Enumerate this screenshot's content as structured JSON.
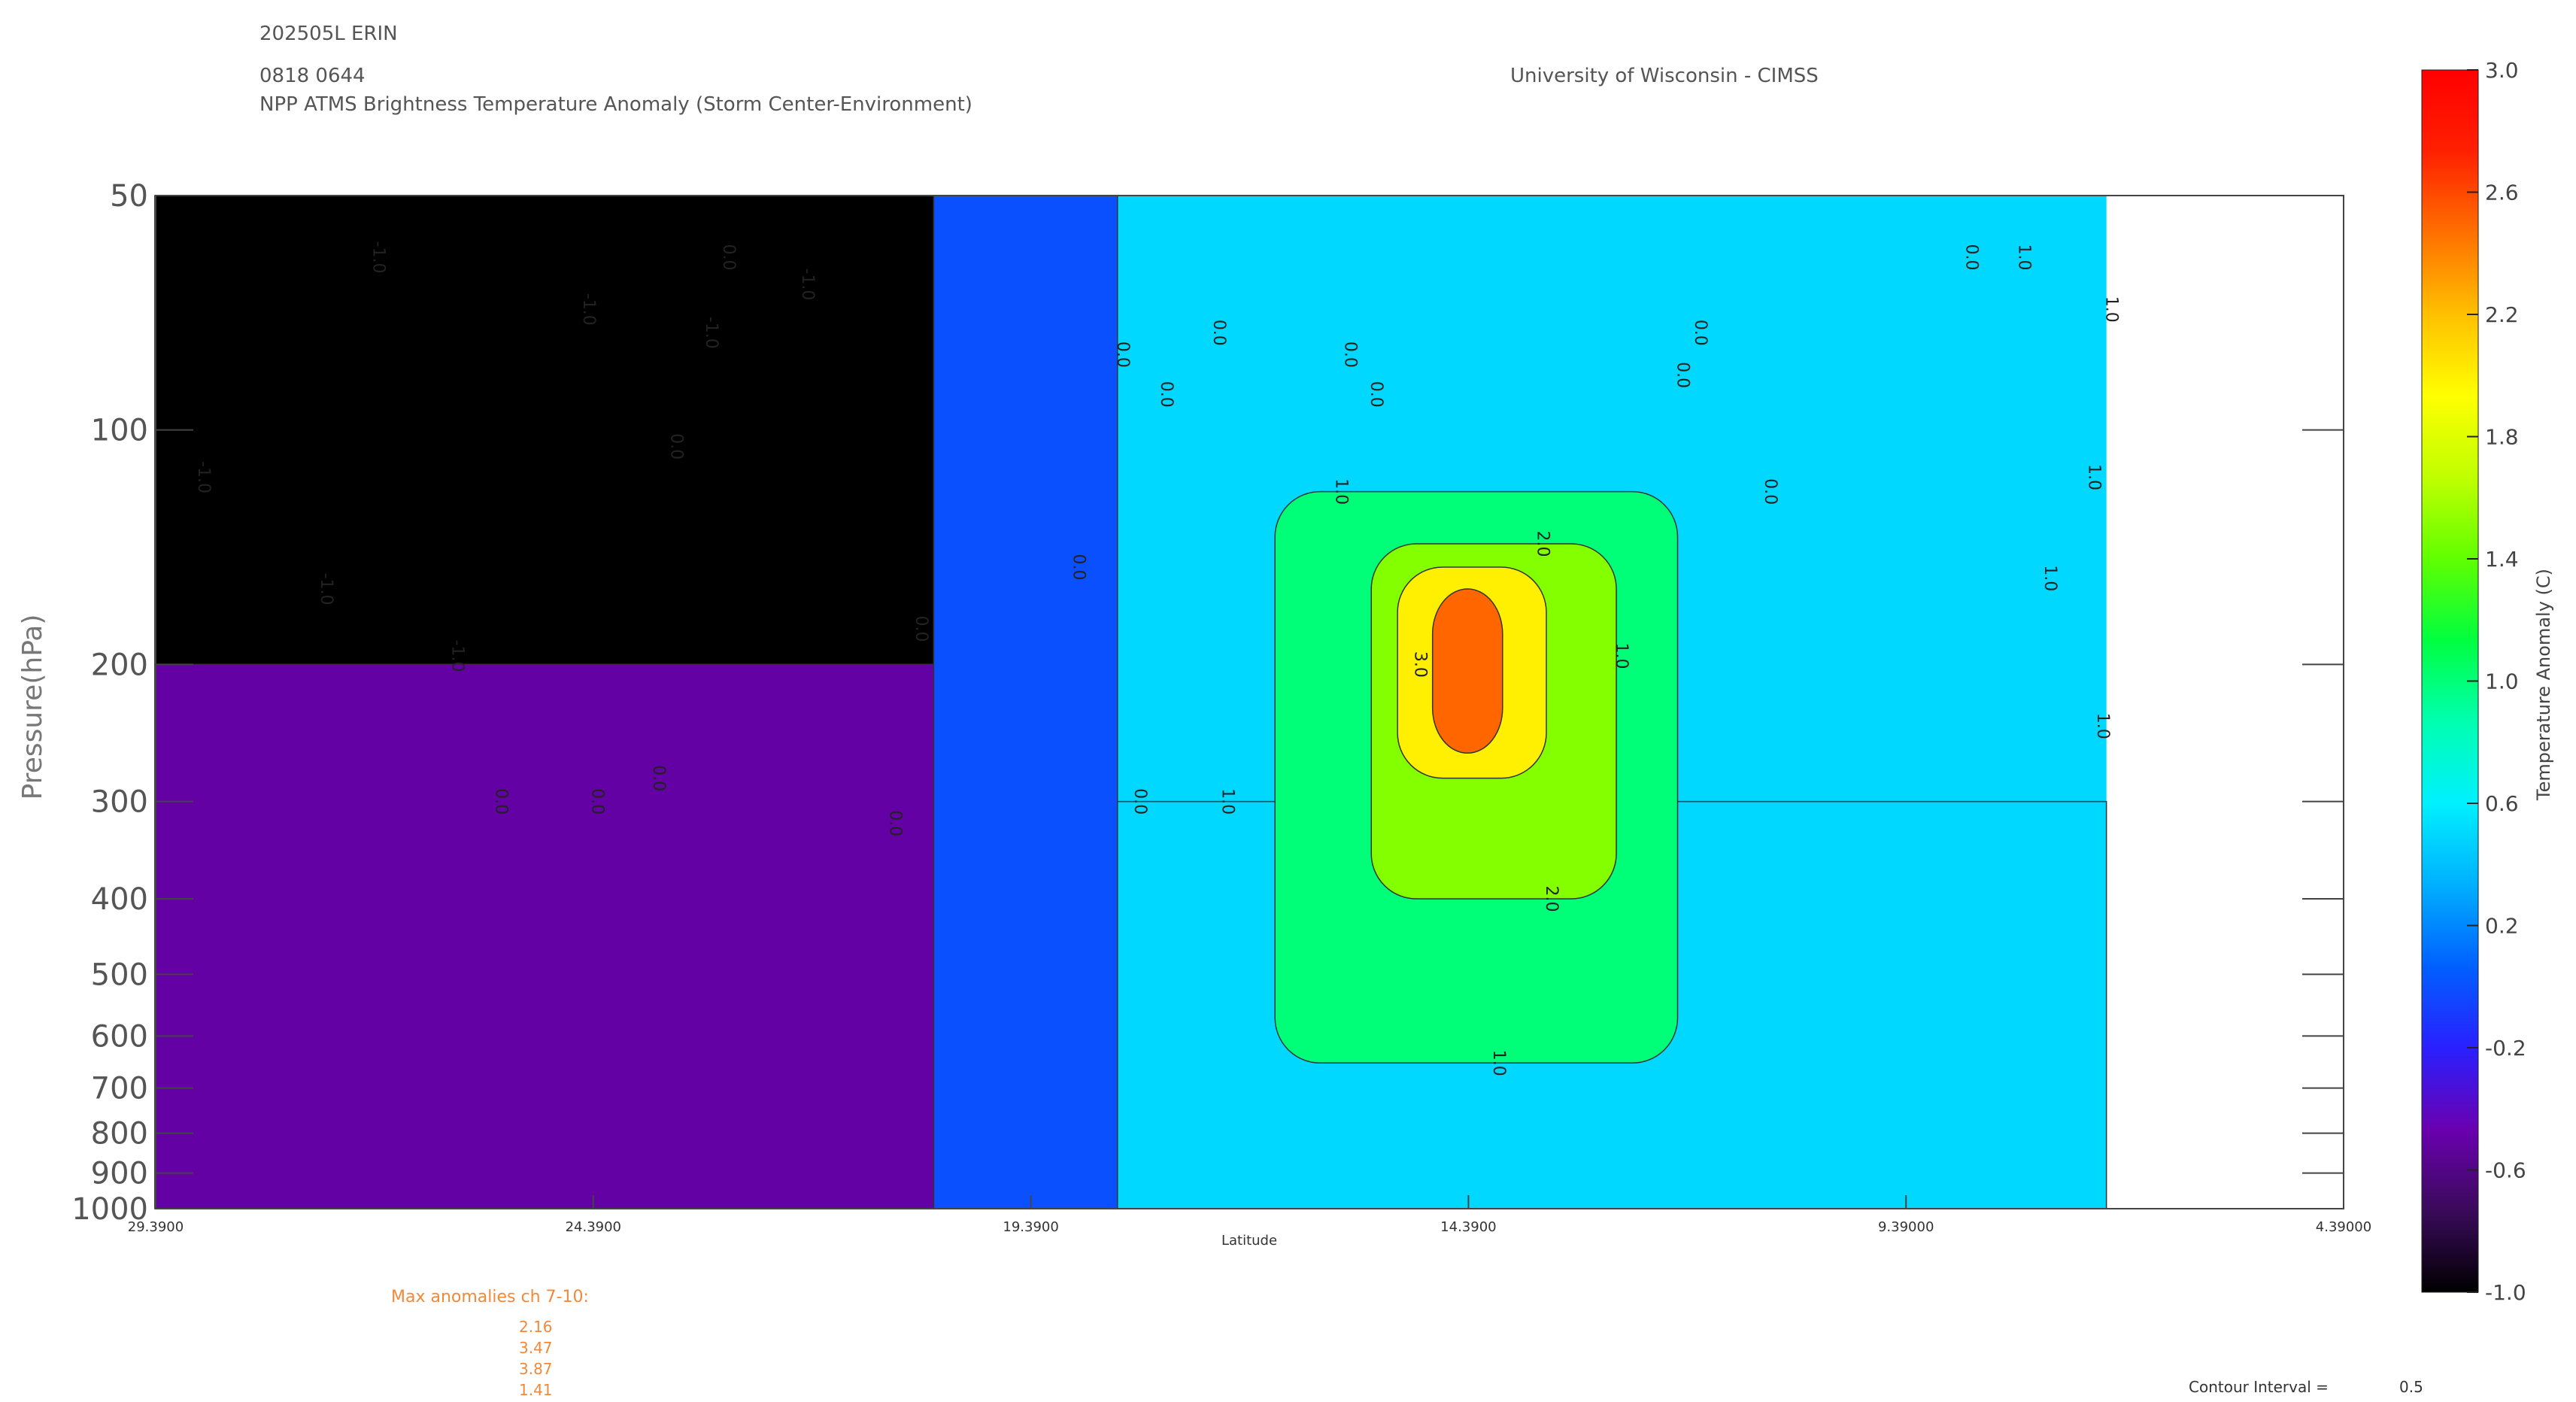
{
  "header": {
    "storm": "202505L ERIN",
    "datetime": "0818 0644",
    "subtitle": "NPP ATMS Brightness Temperature Anomaly (Storm Center-Environment)",
    "institution": "University of Wisconsin - CIMSS"
  },
  "chart_data": {
    "type": "heatmap",
    "subtype": "filled-contour cross-section",
    "xlabel": "Latitude",
    "ylabel": "Pressure(hPa)",
    "x_axis_reversed": true,
    "xlim": [
      29.39,
      4.39
    ],
    "x_ticks": [
      "29.3900",
      "24.3900",
      "19.3900",
      "14.3900",
      "9.39000",
      "4.39000"
    ],
    "x_tick_values": [
      29.39,
      24.39,
      19.39,
      14.39,
      9.39,
      4.39
    ],
    "y_scale": "log",
    "ylim": [
      1000,
      50
    ],
    "y_ticks": [
      "50",
      "100",
      "200",
      "300",
      "400",
      "500",
      "600",
      "700",
      "800",
      "900",
      "1000"
    ],
    "y_tick_values": [
      50,
      100,
      200,
      300,
      400,
      500,
      600,
      700,
      800,
      900,
      1000
    ],
    "data_extent_lat": [
      29.39,
      7.1
    ],
    "colorbar": {
      "label": "Temperature Anomaly (C)",
      "min": -1.0,
      "max": 3.0,
      "tick_labels": [
        "3.0",
        "2.6",
        "2.2",
        "1.8",
        "1.4",
        "1.0",
        "0.6",
        "0.2",
        "-0.2",
        "-0.6",
        "-1.0"
      ],
      "tick_values": [
        3.0,
        2.6,
        2.2,
        1.8,
        1.4,
        1.0,
        0.6,
        0.2,
        -0.2,
        -0.6,
        -1.0
      ],
      "colors": [
        "#000000",
        "#3a0a5a",
        "#6a00b0",
        "#2a20ff",
        "#0060ff",
        "#00b0ff",
        "#00f0ff",
        "#00ffb0",
        "#00ff40",
        "#60ff00",
        "#c0ff00",
        "#ffff00",
        "#ffc000",
        "#ff7000",
        "#ff2000",
        "#ff0000"
      ]
    },
    "anomaly_regions": [
      {
        "lat_range": [
          29.4,
          20.5
        ],
        "p_range": [
          50,
          200
        ],
        "anomaly": -1.0
      },
      {
        "lat_range": [
          29.4,
          19.5
        ],
        "p_range": [
          200,
          1000
        ],
        "anomaly": -0.5
      },
      {
        "lat_range": [
          20.5,
          18.4
        ],
        "p_range": [
          50,
          1000
        ],
        "anomaly": 0.0
      },
      {
        "lat_range": [
          18.4,
          7.1
        ],
        "p_range": [
          300,
          1000
        ],
        "anomaly": 0.5
      },
      {
        "lat_range": [
          16.6,
          12.0
        ],
        "p_range": [
          120,
          650
        ],
        "anomaly": 1.0
      },
      {
        "lat_range": [
          15.5,
          12.7
        ],
        "p_range": [
          140,
          400
        ],
        "anomaly": 1.5
      },
      {
        "lat_range": [
          15.2,
          13.5
        ],
        "p_range": [
          150,
          280
        ],
        "anomaly": 2.0
      },
      {
        "lat_range": [
          14.8,
          14.0
        ],
        "p_range": [
          160,
          260
        ],
        "anomaly": 2.5
      }
    ],
    "contour_labels": [
      {
        "text": "-1.0",
        "lat": 28.9,
        "p": 115
      },
      {
        "text": "-1.0",
        "lat": 27.5,
        "p": 160
      },
      {
        "text": "-1.0",
        "lat": 26.0,
        "p": 195
      },
      {
        "text": "-1.0",
        "lat": 26.9,
        "p": 60
      },
      {
        "text": "-1.0",
        "lat": 24.5,
        "p": 70
      },
      {
        "text": "-1.0",
        "lat": 23.1,
        "p": 75
      },
      {
        "text": "-1.0",
        "lat": 22.0,
        "p": 65
      },
      {
        "text": "0.0",
        "lat": 25.5,
        "p": 300
      },
      {
        "text": "0.0",
        "lat": 24.4,
        "p": 300
      },
      {
        "text": "0.0",
        "lat": 23.7,
        "p": 280
      },
      {
        "text": "0.0",
        "lat": 23.5,
        "p": 105
      },
      {
        "text": "0.0",
        "lat": 22.9,
        "p": 60
      },
      {
        "text": "0.0",
        "lat": 21.0,
        "p": 320
      },
      {
        "text": "0.0",
        "lat": 20.7,
        "p": 180
      },
      {
        "text": "0.0",
        "lat": 18.9,
        "p": 150
      },
      {
        "text": "0.0",
        "lat": 18.4,
        "p": 80
      },
      {
        "text": "0.0",
        "lat": 17.9,
        "p": 90
      },
      {
        "text": "0.0",
        "lat": 17.3,
        "p": 75
      },
      {
        "text": "0.0",
        "lat": 15.8,
        "p": 80
      },
      {
        "text": "0.0",
        "lat": 15.5,
        "p": 90
      },
      {
        "text": "0.0",
        "lat": 12.0,
        "p": 85
      },
      {
        "text": "0.0",
        "lat": 11.8,
        "p": 75
      },
      {
        "text": "0.0",
        "lat": 11.0,
        "p": 120
      },
      {
        "text": "0.0",
        "lat": 8.7,
        "p": 60
      },
      {
        "text": "0.0",
        "lat": 18.2,
        "p": 300
      },
      {
        "text": "1.0",
        "lat": 15.9,
        "p": 120
      },
      {
        "text": "1.0",
        "lat": 17.2,
        "p": 300
      },
      {
        "text": "1.0",
        "lat": 12.7,
        "p": 195
      },
      {
        "text": "1.0",
        "lat": 14.1,
        "p": 650
      },
      {
        "text": "1.0",
        "lat": 8.1,
        "p": 60
      },
      {
        "text": "1.0",
        "lat": 7.3,
        "p": 115
      },
      {
        "text": "1.0",
        "lat": 7.1,
        "p": 70
      },
      {
        "text": "1.0",
        "lat": 7.8,
        "p": 155
      },
      {
        "text": "1.0",
        "lat": 7.2,
        "p": 240
      },
      {
        "text": "2.0",
        "lat": 13.6,
        "p": 140
      },
      {
        "text": "2.0",
        "lat": 13.5,
        "p": 400
      },
      {
        "text": "3.0",
        "lat": 15.0,
        "p": 200
      }
    ]
  },
  "max_anomalies": {
    "title": "Max anomalies ch 7-10:",
    "values": [
      "2.16",
      "3.47",
      "3.87",
      "1.41"
    ]
  },
  "contour_interval": {
    "label": "Contour Interval =",
    "value": "0.5"
  }
}
